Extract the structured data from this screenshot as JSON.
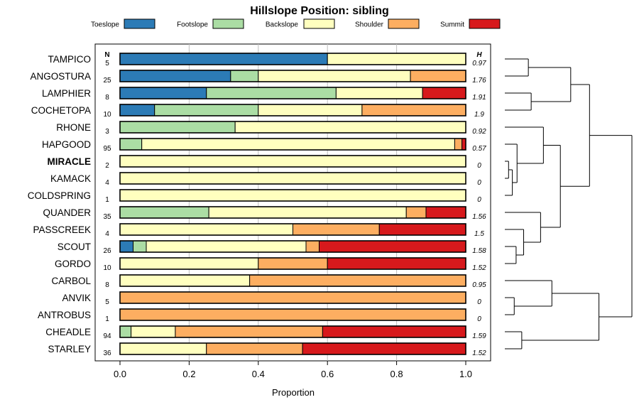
{
  "chart_data": {
    "type": "stacked-bar-horizontal",
    "title": "Hillslope Position: sibling",
    "xlabel": "Proportion",
    "xlim": [
      0,
      1
    ],
    "xticks": [
      "0.0",
      "0.2",
      "0.4",
      "0.6",
      "0.8",
      "1.0"
    ],
    "n_header": "N",
    "h_header": "H",
    "legend": [
      {
        "name": "Toeslope",
        "color": "#2C7BB6"
      },
      {
        "name": "Footslope",
        "color": "#ABDDA4"
      },
      {
        "name": "Backslope",
        "color": "#FFFFBF"
      },
      {
        "name": "Shoulder",
        "color": "#FDAE61"
      },
      {
        "name": "Summit",
        "color": "#D7191C"
      }
    ],
    "rows": [
      {
        "label": "TAMPICO",
        "bold": false,
        "n": "5",
        "h": "0.97",
        "values": [
          0.6,
          0,
          0.4,
          0,
          0
        ]
      },
      {
        "label": "ANGOSTURA",
        "bold": false,
        "n": "25",
        "h": "1.76",
        "values": [
          0.32,
          0.08,
          0.44,
          0.16,
          0
        ]
      },
      {
        "label": "LAMPHIER",
        "bold": false,
        "n": "8",
        "h": "1.91",
        "values": [
          0.25,
          0.375,
          0.25,
          0,
          0.125
        ]
      },
      {
        "label": "COCHETOPA",
        "bold": false,
        "n": "10",
        "h": "1.9",
        "values": [
          0.1,
          0.3,
          0.3,
          0.3,
          0
        ]
      },
      {
        "label": "RHONE",
        "bold": false,
        "n": "3",
        "h": "0.92",
        "values": [
          0,
          0.333,
          0.667,
          0,
          0
        ]
      },
      {
        "label": "HAPGOOD",
        "bold": false,
        "n": "95",
        "h": "0.57",
        "values": [
          0,
          0.063,
          0.905,
          0.021,
          0.011
        ]
      },
      {
        "label": "MIRACLE",
        "bold": true,
        "n": "2",
        "h": "0",
        "values": [
          0,
          0,
          1,
          0,
          0
        ]
      },
      {
        "label": "KAMACK",
        "bold": false,
        "n": "4",
        "h": "0",
        "values": [
          0,
          0,
          1,
          0,
          0
        ]
      },
      {
        "label": "COLDSPRING",
        "bold": false,
        "n": "1",
        "h": "0",
        "values": [
          0,
          0,
          1,
          0,
          0
        ]
      },
      {
        "label": "QUANDER",
        "bold": false,
        "n": "35",
        "h": "1.56",
        "values": [
          0,
          0.257,
          0.571,
          0.057,
          0.115
        ]
      },
      {
        "label": "PASSCREEK",
        "bold": false,
        "n": "4",
        "h": "1.5",
        "values": [
          0,
          0,
          0.5,
          0.25,
          0.25
        ]
      },
      {
        "label": "SCOUT",
        "bold": false,
        "n": "26",
        "h": "1.58",
        "values": [
          0.038,
          0.038,
          0.462,
          0.038,
          0.424
        ]
      },
      {
        "label": "GORDO",
        "bold": false,
        "n": "10",
        "h": "1.52",
        "values": [
          0,
          0,
          0.4,
          0.2,
          0.4
        ]
      },
      {
        "label": "CARBOL",
        "bold": false,
        "n": "8",
        "h": "0.95",
        "values": [
          0,
          0,
          0.375,
          0.625,
          0
        ]
      },
      {
        "label": "ANVIK",
        "bold": false,
        "n": "5",
        "h": "0",
        "values": [
          0,
          0,
          0,
          1,
          0
        ]
      },
      {
        "label": "ANTROBUS",
        "bold": false,
        "n": "1",
        "h": "0",
        "values": [
          0,
          0,
          0,
          1,
          0
        ]
      },
      {
        "label": "CHEADLE",
        "bold": false,
        "n": "94",
        "h": "1.59",
        "values": [
          0,
          0.032,
          0.128,
          0.426,
          0.414
        ]
      },
      {
        "label": "STARLEY",
        "bold": false,
        "n": "36",
        "h": "1.52",
        "values": [
          0,
          0,
          0.25,
          0.278,
          0.472
        ]
      }
    ],
    "dendrogram": {
      "leaf_order": [
        "TAMPICO",
        "ANGOSTURA",
        "LAMPHIER",
        "COCHETOPA",
        "RHONE",
        "HAPGOOD",
        "MIRACLE",
        "KAMACK",
        "COLDSPRING",
        "QUANDER",
        "PASSCREEK",
        "SCOUT",
        "GORDO",
        "CARBOL",
        "ANVIK",
        "ANTROBUS",
        "CHEADLE",
        "STARLEY"
      ],
      "merges": [
        [
          -7,
          -8,
          0.04
        ],
        [
          -9,
          1,
          0.08
        ],
        [
          -6,
          2,
          0.13
        ],
        [
          -12,
          -13,
          0.12
        ],
        [
          -11,
          4,
          0.2
        ],
        [
          -10,
          5,
          0.38
        ],
        [
          -5,
          3,
          0.41
        ],
        [
          7,
          6,
          0.59
        ],
        [
          -1,
          -2,
          0.25
        ],
        [
          -3,
          -4,
          0.28
        ],
        [
          9,
          10,
          0.7
        ],
        [
          11,
          8,
          0.9
        ],
        [
          -15,
          -16,
          0.1
        ],
        [
          -14,
          13,
          0.5
        ],
        [
          -17,
          -18,
          0.18
        ],
        [
          14,
          15,
          1.0
        ],
        [
          12,
          16,
          1.35
        ]
      ]
    }
  }
}
